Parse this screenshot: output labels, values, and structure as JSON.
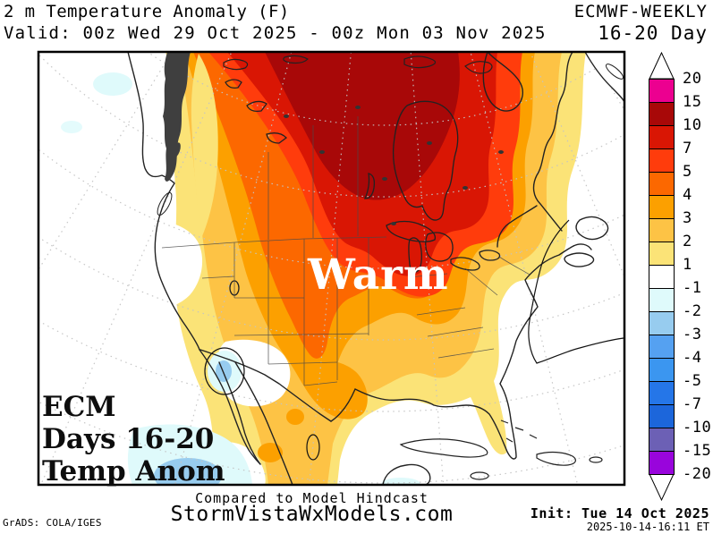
{
  "header": {
    "title": "2 m Temperature Anomaly (F)",
    "model": "ECMWF-WEEKLY",
    "valid": "Valid: 00z Wed 29 Oct 2025 - 00z Mon 03 Nov 2025",
    "range": "16-20 Day"
  },
  "map_labels": {
    "warm": "Warm",
    "corner_line1": "ECM",
    "corner_line2": "Days 16-20",
    "corner_line3": "Temp Anom"
  },
  "colorbar": {
    "labels": [
      "20",
      "15",
      "10",
      "7",
      "5",
      "4",
      "3",
      "2",
      "1",
      "-1",
      "-2",
      "-3",
      "-4",
      "-5",
      "-7",
      "-10",
      "-15",
      "-20"
    ],
    "colors": [
      "#EC0090",
      "#A80808",
      "#D91604",
      "#FF3C0C",
      "#FC6800",
      "#FCA000",
      "#FDC345",
      "#FBE377",
      "#FFFFFF",
      "#DFFAFB",
      "#97CCEF",
      "#55A1F1",
      "#3B96F0",
      "#2576E8",
      "#1C66DB",
      "#6C60B5",
      "#9905DC"
    ]
  },
  "footer": {
    "note": "Compared to Model Hindcast",
    "site": "StormVistaWxModels.com",
    "credit": "GrADS: COLA/IGES",
    "init": "Init: Tue 14 Oct 2025",
    "timestamp": "2025-10-14-16:11 ET"
  }
}
